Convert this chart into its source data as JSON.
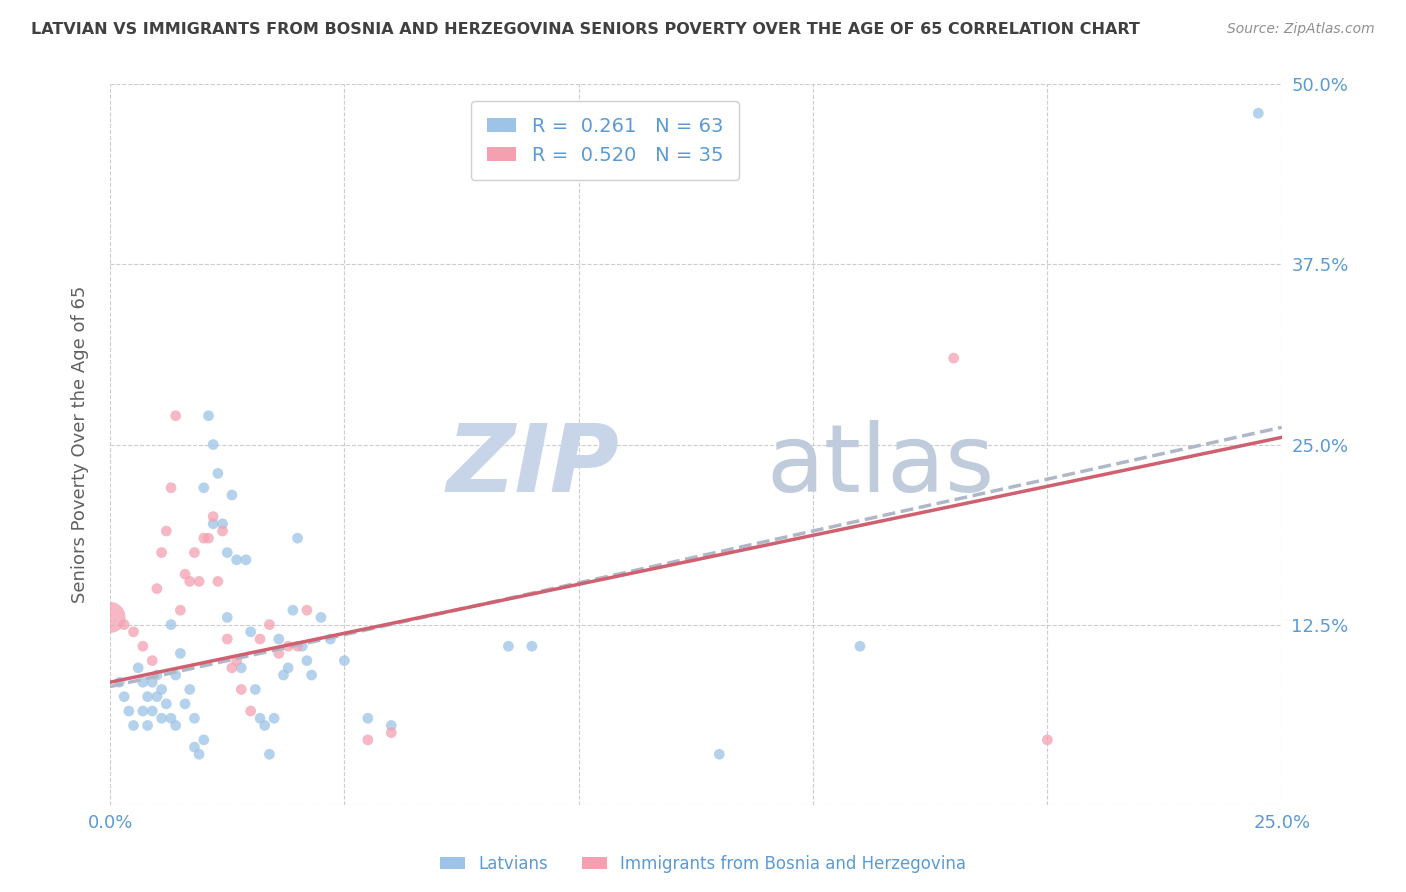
{
  "title": "LATVIAN VS IMMIGRANTS FROM BOSNIA AND HERZEGOVINA SENIORS POVERTY OVER THE AGE OF 65 CORRELATION CHART",
  "source": "Source: ZipAtlas.com",
  "ylabel": "Seniors Poverty Over the Age of 65",
  "xlim": [
    0,
    0.25
  ],
  "ylim": [
    0,
    0.5
  ],
  "yticks": [
    0.0,
    0.125,
    0.25,
    0.375,
    0.5
  ],
  "ytick_labels": [
    "",
    "12.5%",
    "25.0%",
    "37.5%",
    "50.0%"
  ],
  "xticks": [
    0.0,
    0.05,
    0.1,
    0.15,
    0.2,
    0.25
  ],
  "xtick_labels": [
    "0.0%",
    "",
    "",
    "",
    "",
    "25.0%"
  ],
  "latvian_R": 0.261,
  "latvian_N": 63,
  "bosnian_R": 0.52,
  "bosnian_N": 35,
  "tick_color": "#5b9bd5",
  "grid_color": "#c8c8c8",
  "title_color": "#404040",
  "source_color": "#909090",
  "latvian_color": "#9dc3e6",
  "bosnian_color": "#f4a0b0",
  "latvian_line_color": "#b0b8c8",
  "bosnian_line_color": "#d06070",
  "watermark_zip_color": "#c8d4e8",
  "watermark_atlas_color": "#c0ccdc",
  "latvian_points": [
    [
      0.002,
      0.085
    ],
    [
      0.003,
      0.075
    ],
    [
      0.004,
      0.065
    ],
    [
      0.005,
      0.055
    ],
    [
      0.006,
      0.095
    ],
    [
      0.007,
      0.085
    ],
    [
      0.007,
      0.065
    ],
    [
      0.008,
      0.075
    ],
    [
      0.008,
      0.055
    ],
    [
      0.009,
      0.065
    ],
    [
      0.009,
      0.085
    ],
    [
      0.01,
      0.09
    ],
    [
      0.01,
      0.075
    ],
    [
      0.011,
      0.06
    ],
    [
      0.011,
      0.08
    ],
    [
      0.012,
      0.07
    ],
    [
      0.013,
      0.06
    ],
    [
      0.013,
      0.125
    ],
    [
      0.014,
      0.09
    ],
    [
      0.014,
      0.055
    ],
    [
      0.015,
      0.105
    ],
    [
      0.016,
      0.07
    ],
    [
      0.017,
      0.08
    ],
    [
      0.018,
      0.04
    ],
    [
      0.018,
      0.06
    ],
    [
      0.019,
      0.035
    ],
    [
      0.02,
      0.22
    ],
    [
      0.02,
      0.045
    ],
    [
      0.021,
      0.27
    ],
    [
      0.022,
      0.25
    ],
    [
      0.022,
      0.195
    ],
    [
      0.023,
      0.23
    ],
    [
      0.024,
      0.195
    ],
    [
      0.025,
      0.175
    ],
    [
      0.025,
      0.13
    ],
    [
      0.026,
      0.215
    ],
    [
      0.027,
      0.17
    ],
    [
      0.028,
      0.095
    ],
    [
      0.029,
      0.17
    ],
    [
      0.03,
      0.12
    ],
    [
      0.031,
      0.08
    ],
    [
      0.032,
      0.06
    ],
    [
      0.033,
      0.055
    ],
    [
      0.034,
      0.035
    ],
    [
      0.035,
      0.06
    ],
    [
      0.036,
      0.115
    ],
    [
      0.037,
      0.09
    ],
    [
      0.038,
      0.095
    ],
    [
      0.039,
      0.135
    ],
    [
      0.04,
      0.185
    ],
    [
      0.041,
      0.11
    ],
    [
      0.042,
      0.1
    ],
    [
      0.043,
      0.09
    ],
    [
      0.045,
      0.13
    ],
    [
      0.047,
      0.115
    ],
    [
      0.05,
      0.1
    ],
    [
      0.055,
      0.06
    ],
    [
      0.06,
      0.055
    ],
    [
      0.085,
      0.11
    ],
    [
      0.09,
      0.11
    ],
    [
      0.13,
      0.035
    ],
    [
      0.16,
      0.11
    ],
    [
      0.245,
      0.48
    ]
  ],
  "bosnian_points": [
    [
      0.0,
      0.13
    ],
    [
      0.003,
      0.125
    ],
    [
      0.005,
      0.12
    ],
    [
      0.007,
      0.11
    ],
    [
      0.009,
      0.1
    ],
    [
      0.01,
      0.15
    ],
    [
      0.011,
      0.175
    ],
    [
      0.012,
      0.19
    ],
    [
      0.013,
      0.22
    ],
    [
      0.014,
      0.27
    ],
    [
      0.015,
      0.135
    ],
    [
      0.016,
      0.16
    ],
    [
      0.017,
      0.155
    ],
    [
      0.018,
      0.175
    ],
    [
      0.019,
      0.155
    ],
    [
      0.02,
      0.185
    ],
    [
      0.021,
      0.185
    ],
    [
      0.022,
      0.2
    ],
    [
      0.023,
      0.155
    ],
    [
      0.024,
      0.19
    ],
    [
      0.025,
      0.115
    ],
    [
      0.026,
      0.095
    ],
    [
      0.027,
      0.1
    ],
    [
      0.028,
      0.08
    ],
    [
      0.03,
      0.065
    ],
    [
      0.032,
      0.115
    ],
    [
      0.034,
      0.125
    ],
    [
      0.036,
      0.105
    ],
    [
      0.038,
      0.11
    ],
    [
      0.04,
      0.11
    ],
    [
      0.042,
      0.135
    ],
    [
      0.055,
      0.045
    ],
    [
      0.06,
      0.05
    ],
    [
      0.18,
      0.31
    ],
    [
      0.2,
      0.045
    ]
  ],
  "latvian_sizes": [
    60,
    60,
    60,
    60,
    60,
    60,
    60,
    60,
    60,
    60,
    60,
    60,
    60,
    60,
    60,
    60,
    60,
    60,
    60,
    60,
    60,
    60,
    60,
    60,
    60,
    60,
    60,
    60,
    60,
    60,
    60,
    60,
    60,
    60,
    60,
    60,
    60,
    60,
    60,
    60,
    60,
    60,
    60,
    60,
    60,
    60,
    60,
    60,
    60,
    60,
    60,
    60,
    60,
    60,
    60,
    60,
    60,
    60,
    60,
    60,
    60,
    60,
    60
  ],
  "bosnian_sizes": [
    500,
    60,
    60,
    60,
    60,
    60,
    60,
    60,
    60,
    60,
    60,
    60,
    60,
    60,
    60,
    60,
    60,
    60,
    60,
    60,
    60,
    60,
    60,
    60,
    60,
    60,
    60,
    60,
    60,
    60,
    60,
    60,
    60,
    60,
    60
  ],
  "lv_line_x": [
    0.0,
    0.25
  ],
  "lv_line_y": [
    0.082,
    0.262
  ],
  "bo_line_x": [
    0.0,
    0.25
  ],
  "bo_line_y": [
    0.085,
    0.255
  ]
}
